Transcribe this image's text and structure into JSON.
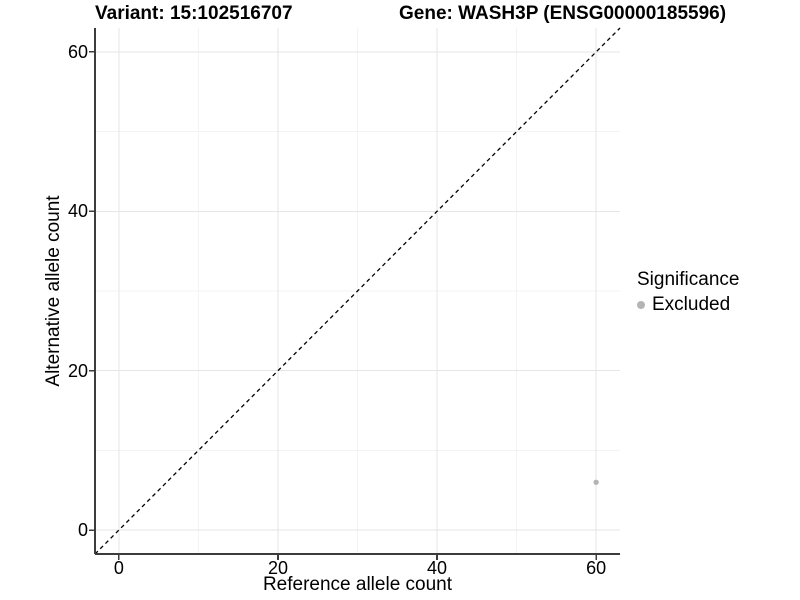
{
  "titles": {
    "variant": "Variant: 15:102516707",
    "gene": "Gene: WASH3P (ENSG00000185596)"
  },
  "colors": {
    "axis_line": "#3c3c3c",
    "grid_major": "#e6e6e6",
    "grid_minor": "#f3f3f3",
    "dashed_line": "#000000",
    "point": "#b4b4b4",
    "text": "#000000"
  },
  "chart_data": {
    "type": "scatter",
    "title_left": "Variant: 15:102516707",
    "title_right": "Gene: WASH3P (ENSG00000185596)",
    "xlabel": "Reference allele count",
    "ylabel": "Alternative allele count",
    "xlim": [
      -3,
      63
    ],
    "ylim": [
      -3,
      63
    ],
    "x_major_ticks": [
      0,
      20,
      40,
      60
    ],
    "y_major_ticks": [
      0,
      20,
      40,
      60
    ],
    "x_minor_gridlines": [
      10,
      30,
      50
    ],
    "y_minor_gridlines": [
      10,
      30,
      50
    ],
    "grid": "on",
    "identity_line": {
      "style": "dashed",
      "from": [
        -3,
        -3
      ],
      "to": [
        63,
        63
      ]
    },
    "series": [
      {
        "name": "Excluded",
        "color": "#b4b4b4",
        "points": [
          {
            "x": 60,
            "y": 6
          }
        ]
      }
    ],
    "legend": {
      "title": "Significance",
      "position": "right"
    }
  }
}
